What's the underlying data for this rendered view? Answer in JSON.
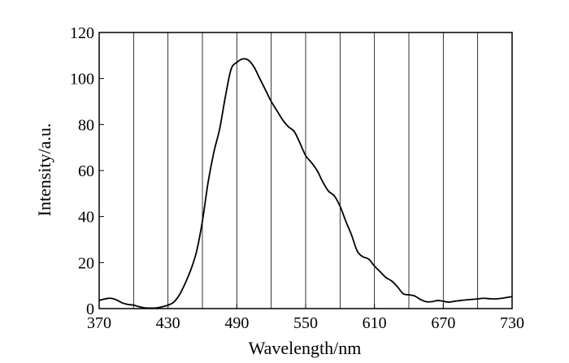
{
  "chart_data": {
    "type": "line",
    "title": "",
    "xlabel": "Wavelength/nm",
    "ylabel": "Intensity/a.u.",
    "xlim": [
      370,
      730
    ],
    "ylim": [
      0,
      120
    ],
    "xticks": [
      370,
      430,
      490,
      550,
      610,
      670,
      730
    ],
    "xtick_labels": [
      "370",
      "430",
      "490",
      "550",
      "610",
      "670",
      "730"
    ],
    "yticks": [
      0,
      20,
      40,
      60,
      80,
      100,
      120
    ],
    "ytick_labels": [
      "0",
      "20",
      "40",
      "60",
      "80",
      "100",
      "120"
    ],
    "grid": "vertical lines every 30 nm",
    "grid_x": [
      400,
      430,
      460,
      490,
      520,
      550,
      580,
      610,
      640,
      670,
      700
    ],
    "legend": "none",
    "line_color": "#000000",
    "grid_color": "#000000",
    "series": [
      {
        "x": [
          370,
          375,
          380,
          385,
          390,
          395,
          400,
          405,
          410,
          415,
          420,
          425,
          430,
          435,
          440,
          445,
          450,
          455,
          460,
          465,
          470,
          475,
          480,
          485,
          490,
          495,
          500,
          505,
          510,
          515,
          520,
          525,
          530,
          535,
          540,
          545,
          550,
          555,
          560,
          565,
          570,
          575,
          580,
          585,
          590,
          595,
          600,
          605,
          610,
          615,
          620,
          625,
          630,
          635,
          640,
          645,
          650,
          655,
          660,
          665,
          670,
          675,
          680,
          685,
          690,
          695,
          700,
          705,
          710,
          715,
          720,
          725,
          730
        ],
        "y": [
          3.5,
          4.2,
          4.5,
          3.8,
          2.5,
          1.8,
          1.5,
          0.8,
          0.3,
          0.2,
          0.3,
          0.8,
          1.5,
          2.8,
          6.0,
          11.0,
          17.0,
          25.0,
          38.0,
          55.0,
          68.0,
          78.0,
          92.0,
          104.0,
          107.0,
          108.5,
          108.0,
          105.0,
          100.0,
          95.0,
          90.0,
          86.0,
          82.0,
          79.0,
          77.0,
          72.0,
          66.5,
          63.5,
          60.0,
          55.0,
          51.0,
          49.0,
          44.5,
          38.0,
          32.0,
          25.0,
          22.5,
          21.5,
          18.5,
          16.0,
          13.5,
          12.0,
          9.5,
          6.5,
          6.0,
          5.5,
          4.0,
          3.0,
          3.0,
          3.5,
          3.2,
          2.8,
          3.2,
          3.5,
          3.8,
          4.0,
          4.2,
          4.5,
          4.3,
          4.2,
          4.4,
          4.8,
          5.2
        ]
      }
    ]
  }
}
